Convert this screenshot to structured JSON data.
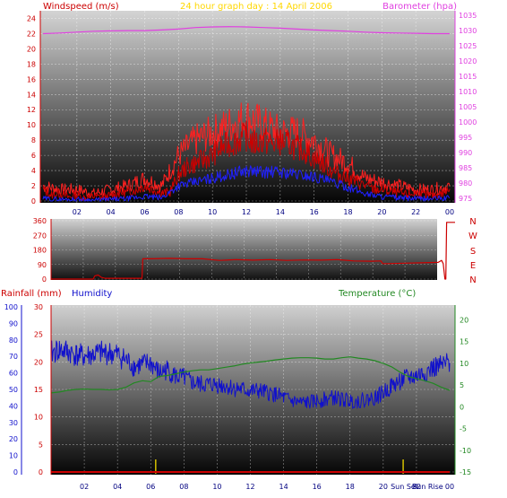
{
  "colors": {
    "wind": "#cc0000",
    "gust": "#ff2020",
    "avg_wind": "#2020ff",
    "barometer": "#e040e0",
    "direction": "#cc0000",
    "humidity": "#1010cc",
    "temperature": "#228822",
    "rain": "#cc0000",
    "title": "#ffd700",
    "sun": "#d4c000"
  },
  "chart_data": [
    {
      "type": "line",
      "title": "24 hour graph day : 14 April 2006",
      "y1label": "Windspeed (m/s)",
      "y2label": "Barometer (hpa)",
      "y1lim": [
        0,
        25
      ],
      "y1ticks": [
        0,
        2,
        4,
        6,
        8,
        10,
        12,
        14,
        16,
        18,
        20,
        22,
        24
      ],
      "y2lim": [
        973.5,
        1036.5
      ],
      "y2ticks": [
        975,
        980,
        985,
        990,
        995,
        1000,
        1005,
        1010,
        1015,
        1020,
        1025,
        1030,
        1035
      ],
      "xticks": [
        "02",
        "04",
        "06",
        "08",
        "10",
        "12",
        "14",
        "16",
        "18",
        "20",
        "22",
        "00"
      ],
      "xlim": [
        0,
        24
      ],
      "grid": true,
      "series": [
        {
          "name": "Windspeed",
          "axis": "y1",
          "x": [
            0,
            0.5,
            1,
            1.5,
            2,
            2.5,
            3,
            3.5,
            4,
            4.5,
            5,
            5.5,
            6,
            6.5,
            7,
            7.5,
            8,
            8.5,
            9,
            9.5,
            10,
            10.5,
            11,
            11.5,
            12,
            12.5,
            13,
            13.5,
            14,
            14.5,
            15,
            15.5,
            16,
            16.5,
            17,
            17.5,
            18,
            18.5,
            19,
            19.5,
            20,
            20.5,
            21,
            21.5,
            22,
            22.5,
            23,
            23.5,
            24
          ],
          "y": [
            1.5,
            0.8,
            1,
            0.5,
            0.8,
            0.4,
            0.6,
            0.5,
            0.7,
            1,
            1.2,
            1.5,
            2,
            1.5,
            1,
            1.2,
            3.5,
            4.5,
            5,
            5.5,
            6,
            7,
            7.5,
            8,
            8.5,
            7.5,
            8,
            7.5,
            7.8,
            7.5,
            7,
            6.5,
            5.5,
            5,
            4,
            3.5,
            3,
            2.5,
            2,
            1.5,
            1.5,
            1.2,
            1,
            0.8,
            1,
            0.8,
            0.7,
            0.9,
            1.5
          ]
        },
        {
          "name": "Gust",
          "axis": "y1",
          "x": [
            0,
            1,
            2,
            3,
            4,
            5,
            6,
            7,
            8,
            9,
            10,
            11,
            12,
            13,
            14,
            15,
            16,
            17,
            18,
            19,
            20,
            21,
            22,
            23,
            24
          ],
          "y": [
            2,
            1.5,
            1.5,
            1,
            1.5,
            2,
            3,
            2,
            6,
            8,
            9,
            10,
            11,
            10,
            9,
            9,
            8,
            6,
            5,
            3,
            2.5,
            2,
            1.5,
            1.5,
            2
          ]
        },
        {
          "name": "Average wind",
          "axis": "y1",
          "x": [
            0,
            1,
            2,
            3,
            4,
            5,
            6,
            7,
            8,
            9,
            10,
            11,
            12,
            13,
            14,
            15,
            16,
            17,
            18,
            19,
            20,
            21,
            22,
            23,
            24
          ],
          "y": [
            0.3,
            0.2,
            0.2,
            0.1,
            0.2,
            0.3,
            0.6,
            0.4,
            2,
            2.5,
            3,
            3.5,
            4,
            3.8,
            3.8,
            3.5,
            3.2,
            2.5,
            1.8,
            1,
            0.6,
            0.4,
            0.3,
            0.3,
            0.4
          ]
        },
        {
          "name": "Barometer",
          "axis": "y2",
          "x": [
            0,
            1,
            2,
            3,
            4,
            5,
            6,
            7,
            8,
            9,
            10,
            11,
            12,
            13,
            14,
            15,
            16,
            17,
            18,
            19,
            20,
            21,
            22,
            23,
            24
          ],
          "y": [
            1029,
            1029.2,
            1029.5,
            1029.8,
            1029.9,
            1030,
            1030,
            1030.2,
            1030.5,
            1031,
            1031.2,
            1031.3,
            1031.2,
            1031,
            1030.8,
            1030.5,
            1030.2,
            1030,
            1029.8,
            1029.5,
            1029.3,
            1029.2,
            1029.1,
            1029,
            1029
          ]
        }
      ]
    },
    {
      "type": "line",
      "title": "",
      "ylim": [
        0,
        360
      ],
      "yticks": [
        0,
        90,
        180,
        270,
        360
      ],
      "compass": [
        "N",
        "W",
        "S",
        "E",
        "N"
      ],
      "xlim": [
        0,
        24
      ],
      "grid": true,
      "series": [
        {
          "name": "Wind direction",
          "x": [
            0,
            1,
            2,
            2.5,
            2.6,
            2.8,
            3.0,
            3.2,
            4,
            5,
            5.4,
            5.45,
            6,
            7,
            8,
            9,
            10,
            11,
            12,
            13,
            14,
            15,
            16,
            17,
            18,
            19,
            19.6,
            19.7,
            20,
            21,
            22,
            23,
            23.2,
            23.3,
            23.4,
            23.45,
            23.5,
            24
          ],
          "y": [
            0,
            0,
            0,
            0,
            20,
            25,
            10,
            5,
            5,
            5,
            5,
            125,
            125,
            128,
            125,
            125,
            115,
            120,
            117,
            120,
            115,
            118,
            117,
            120,
            112,
            110,
            112,
            95,
            95,
            98,
            100,
            103,
            115,
            95,
            0,
            0,
            350,
            350
          ]
        }
      ]
    },
    {
      "type": "line",
      "title": "",
      "y_rain_label": "Rainfall (mm)",
      "y_hum_label": "Humidity",
      "y_temp_label": "Temperature (°C)",
      "hum_lim": [
        0,
        100
      ],
      "hum_ticks": [
        0,
        10,
        20,
        30,
        40,
        50,
        60,
        70,
        80,
        90,
        100
      ],
      "rain_lim": [
        0,
        30
      ],
      "rain_ticks": [
        0,
        5,
        10,
        15,
        20,
        25,
        30
      ],
      "temp_lim": [
        -15,
        23
      ],
      "temp_ticks": [
        -15,
        -10,
        -5,
        0,
        5,
        10,
        15,
        20
      ],
      "xticks": [
        "02",
        "04",
        "06",
        "08",
        "10",
        "12",
        "14",
        "16",
        "18",
        "20",
        "22",
        "00"
      ],
      "xlim": [
        0,
        24
      ],
      "sun_labels": [
        "Sun Set",
        "Sun Rise"
      ],
      "sun_markers_x": [
        6.3,
        21.2
      ],
      "grid": true,
      "series": [
        {
          "name": "Humidity",
          "axis": "hum",
          "x": [
            0,
            0.5,
            1,
            1.5,
            2,
            2.5,
            3,
            3.5,
            4,
            4.5,
            5,
            5.5,
            6,
            6.5,
            7,
            7.5,
            8,
            8.5,
            9,
            9.5,
            10,
            10.5,
            11,
            11.5,
            12,
            12.5,
            13,
            13.5,
            14,
            14.5,
            15,
            15.5,
            16,
            16.5,
            17,
            17.5,
            18,
            18.5,
            19,
            19.5,
            20,
            20.5,
            21,
            21.5,
            22,
            22.5,
            23,
            23.5,
            24
          ],
          "y": [
            72,
            74,
            73,
            71,
            70,
            71,
            72,
            72,
            71,
            68,
            64,
            65,
            66,
            60,
            62,
            58,
            57,
            54,
            53,
            53,
            53,
            52,
            51,
            50,
            49,
            49,
            48,
            47,
            45,
            43,
            42,
            42,
            43,
            44,
            45,
            44,
            43,
            43,
            44,
            45,
            48,
            52,
            55,
            57,
            58,
            60,
            63,
            64,
            66
          ]
        },
        {
          "name": "Temperature",
          "axis": "temp",
          "x": [
            0,
            0.5,
            1,
            1.5,
            2,
            2.5,
            3,
            3.5,
            4,
            4.5,
            5,
            5.5,
            6,
            6.5,
            7,
            7.5,
            8,
            8.5,
            9,
            9.5,
            10,
            10.5,
            11,
            11.5,
            12,
            12.5,
            13,
            13.5,
            14,
            14.5,
            15,
            15.5,
            16,
            16.5,
            17,
            17.5,
            18,
            18.5,
            19,
            19.5,
            20,
            20.5,
            21,
            21.5,
            22,
            22.5,
            23,
            23.5,
            24
          ],
          "y": [
            3.2,
            3.4,
            3.8,
            4.0,
            4.1,
            4.0,
            4.0,
            3.9,
            4.0,
            4.5,
            5.5,
            6.0,
            5.8,
            7.0,
            7.2,
            7.6,
            8.0,
            8.3,
            8.5,
            8.5,
            8.8,
            9.1,
            9.4,
            9.8,
            10.1,
            10.3,
            10.5,
            10.8,
            11.0,
            11.2,
            11.3,
            11.3,
            11.2,
            11.0,
            11.0,
            11.3,
            11.5,
            11.2,
            11.0,
            10.6,
            10.0,
            9.2,
            8.0,
            7.0,
            6.5,
            6.0,
            5.4,
            4.5,
            3.8
          ]
        },
        {
          "name": "Rainfall",
          "axis": "rain",
          "x": [
            0,
            24
          ],
          "y": [
            0,
            0
          ]
        }
      ]
    }
  ]
}
